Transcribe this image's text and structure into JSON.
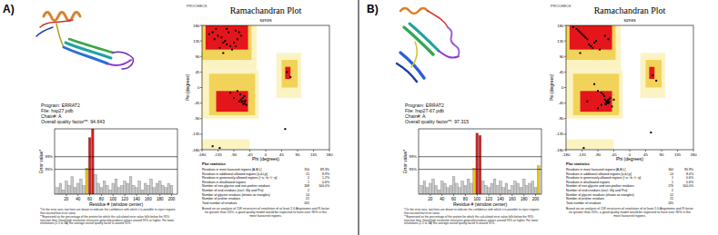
{
  "figure": {
    "panel_labels": [
      "A)",
      "B)"
    ]
  },
  "chart_data": [
    {
      "type": "bar",
      "annotations": {
        "program": "Program: ERRAT2",
        "file": "File: hsp27.pdb",
        "chain": "Chain#: A",
        "quality": "Overall quality factor**: 94.643",
        "footnotes": [
          "*On the error axis, two lines are drawn to indicate the confidence with which it is possible to reject regions that exceed that error value.",
          "**Expressed as the percentage of the protein for which the calculated error value falls below the 95% rejection limit. Good high resolution structures generally produce values around 95% or higher. For lower resolutions (2.5 to 3A) the average overall quality factor is around 91%."
        ]
      },
      "x_label": "Residue # (window center)",
      "y_label": "Error value*",
      "x": [
        5,
        10,
        15,
        20,
        25,
        30,
        35,
        40,
        45,
        50,
        55,
        60,
        65,
        70,
        75,
        80,
        85,
        90,
        95,
        100,
        105,
        110,
        115,
        120,
        125,
        130,
        135,
        140,
        145,
        150,
        155,
        160,
        165,
        170,
        175,
        180,
        185,
        190,
        195,
        200
      ],
      "values": [
        3,
        5,
        2,
        6,
        4,
        8,
        3,
        5,
        7,
        4,
        12,
        26,
        30,
        9,
        5,
        3,
        6,
        4,
        2,
        5,
        7,
        3,
        4,
        6,
        5,
        8,
        4,
        3,
        6,
        2,
        5,
        4,
        7,
        3,
        5,
        6,
        4,
        3,
        5,
        4
      ],
      "colors": [
        "#c8c8c8",
        "#c8c8c8",
        "#c8c8c8",
        "#c8c8c8",
        "#c8c8c8",
        "#c8c8c8",
        "#c8c8c8",
        "#c8c8c8",
        "#c8c8c8",
        "#c8c8c8",
        "#e6c619",
        "#cc1f1f",
        "#cc1f1f",
        "#c8c8c8",
        "#c8c8c8",
        "#c8c8c8",
        "#c8c8c8",
        "#c8c8c8",
        "#c8c8c8",
        "#c8c8c8",
        "#c8c8c8",
        "#c8c8c8",
        "#c8c8c8",
        "#c8c8c8",
        "#c8c8c8",
        "#c8c8c8",
        "#c8c8c8",
        "#c8c8c8",
        "#c8c8c8",
        "#c8c8c8",
        "#c8c8c8",
        "#c8c8c8",
        "#c8c8c8",
        "#c8c8c8",
        "#c8c8c8",
        "#c8c8c8",
        "#c8c8c8",
        "#c8c8c8",
        "#c8c8c8",
        "#c8c8c8"
      ],
      "xlim": [
        0,
        210
      ],
      "xticks": [
        20,
        40,
        60,
        80,
        100,
        120,
        140,
        160,
        180,
        200
      ],
      "ylim": [
        0,
        30
      ],
      "thresholds": [
        {
          "value": 11.4,
          "label": "95%"
        },
        {
          "value": 17.2,
          "label": "99%"
        }
      ],
      "tick_labels": "x",
      "grid": false
    },
    {
      "type": "scatter",
      "title": "Ramachandran Plot",
      "subtitle": "saves",
      "annotations": {
        "program": "PROCHECK",
        "stats_title": "Plot statistics",
        "rows": [
          [
            "Residues in most favoured regions [A,B,L]",
            "150",
            "89.3%"
          ],
          [
            "Residues in additional allowed regions [a,b,l,p]",
            "15",
            "8.9%"
          ],
          [
            "Residues in generously allowed regions [~a,~b,~l,~p]",
            "2",
            "1.2%"
          ],
          [
            "Residues in disallowed regions",
            "1",
            "0.6%"
          ],
          [
            "Number of non-glycine and non-proline residues",
            "168",
            "100.0%"
          ],
          [
            "Number of end-residues (excl. Gly and Pro)",
            "2"
          ],
          [
            "Number of glycine residues (shown as triangles)",
            "14"
          ],
          [
            "Number of proline residues",
            "21"
          ],
          [
            "Total number of residues",
            "205"
          ]
        ],
        "note": "Based on an analysis of 118 structures of resolution of at least 2.0 Angstroms and R-factor no greater than 20%, a good quality model would be expected to have over 90% in the most favoured regions."
      },
      "x_label": "Phi (degrees)",
      "y_label": "Psi (degrees)",
      "x": [
        -120,
        -135,
        -100,
        -150,
        -80,
        -110,
        -140,
        -95,
        -125,
        -160,
        -70,
        -115,
        -130,
        -90,
        -105,
        -145,
        -85,
        -120,
        -65,
        -60,
        -70,
        -55,
        -65,
        -75,
        -60,
        -68,
        -58,
        -63,
        -72,
        -80,
        -100,
        -90,
        -110,
        70,
        60,
        -75,
        -85,
        -150,
        -130,
        55
      ],
      "values": [
        130,
        150,
        120,
        160,
        140,
        125,
        170,
        110,
        145,
        155,
        150,
        135,
        115,
        130,
        160,
        140,
        120,
        100,
        -40,
        -45,
        -35,
        -50,
        -30,
        -40,
        -25,
        -42,
        -38,
        -48,
        -20,
        -10,
        -15,
        -30,
        170,
        30,
        45,
        160,
        165,
        -170,
        -175,
        -120
      ],
      "color": "#000000",
      "marker": "square",
      "xlim": [
        -180,
        180
      ],
      "xticks": [
        -180,
        -135,
        -90,
        -45,
        0,
        45,
        90,
        135,
        180
      ],
      "ylim": [
        -180,
        180
      ],
      "yticks": [
        -180,
        -135,
        -90,
        -45,
        0,
        45,
        90,
        135,
        180
      ],
      "grid": false
    },
    {
      "type": "bar",
      "annotations": {
        "program": "Program: ERRAT2",
        "file": "File: hsp27-67.pdb",
        "chain": "Chain#: A",
        "quality": "Overall quality factor**: 97.315",
        "footnotes": [
          "*On the error axis, two lines are drawn to indicate the confidence with which it is possible to reject regions that exceed that error value.",
          "**Expressed as the percentage of the protein for which the calculated error value falls below the 95% rejection limit. Good high resolution structures generally produce values around 95% or higher. For lower resolutions (2.5 to 3A) the average overall quality factor is around 91%."
        ]
      },
      "x_label": "Residue # (window center)",
      "y_label": "Error value*",
      "x": [
        5,
        10,
        15,
        20,
        25,
        30,
        35,
        40,
        45,
        50,
        55,
        60,
        65,
        70,
        75,
        80,
        85,
        90,
        95,
        100,
        105,
        110,
        115,
        120,
        125,
        130,
        135,
        140,
        145,
        150,
        155,
        160,
        165,
        170,
        175,
        180,
        185,
        190,
        195,
        200,
        205
      ],
      "values": [
        4,
        6,
        3,
        5,
        7,
        4,
        2,
        6,
        5,
        3,
        4,
        8,
        5,
        3,
        6,
        4,
        7,
        5,
        12,
        28,
        27,
        6,
        4,
        3,
        5,
        7,
        4,
        6,
        3,
        5,
        2,
        4,
        6,
        5,
        3,
        7,
        4,
        5,
        6,
        3,
        13
      ],
      "colors": [
        "#c8c8c8",
        "#c8c8c8",
        "#c8c8c8",
        "#c8c8c8",
        "#c8c8c8",
        "#c8c8c8",
        "#c8c8c8",
        "#c8c8c8",
        "#c8c8c8",
        "#c8c8c8",
        "#c8c8c8",
        "#c8c8c8",
        "#c8c8c8",
        "#c8c8c8",
        "#c8c8c8",
        "#c8c8c8",
        "#c8c8c8",
        "#c8c8c8",
        "#e6c619",
        "#cc1f1f",
        "#cc1f1f",
        "#c8c8c8",
        "#c8c8c8",
        "#c8c8c8",
        "#c8c8c8",
        "#c8c8c8",
        "#c8c8c8",
        "#c8c8c8",
        "#c8c8c8",
        "#c8c8c8",
        "#c8c8c8",
        "#c8c8c8",
        "#c8c8c8",
        "#c8c8c8",
        "#c8c8c8",
        "#c8c8c8",
        "#c8c8c8",
        "#c8c8c8",
        "#c8c8c8",
        "#c8c8c8",
        "#e6c619"
      ],
      "xlim": [
        0,
        210
      ],
      "xticks": [
        20,
        40,
        60,
        80,
        100,
        120,
        140,
        160,
        180,
        200
      ],
      "ylim": [
        0,
        30
      ],
      "thresholds": [
        {
          "value": 11.4,
          "label": "95%"
        },
        {
          "value": 17.2,
          "label": "99%"
        }
      ],
      "tick_labels": "x",
      "grid": false
    },
    {
      "type": "scatter",
      "title": "Ramachandran Plot",
      "subtitle": "saves",
      "annotations": {
        "program": "PROCHECK",
        "stats_title": "Plot statistics",
        "rows": [
          [
            "Residues in most favoured regions [A,B,L]",
            "160",
            "90.9%"
          ],
          [
            "Residues in additional allowed regions [a,b,l,p]",
            "14",
            "8.0%"
          ],
          [
            "Residues in generously allowed regions [~a,~b,~l,~p]",
            "1",
            "0.6%"
          ],
          [
            "Residues in disallowed regions",
            "1",
            "0.6%"
          ],
          [
            "Number of non-glycine and non-proline residues",
            "176",
            "100.0%"
          ],
          [
            "Number of end-residues (excl. Gly and Pro)",
            "2"
          ],
          [
            "Number of glycine residues (shown as triangles)",
            "12"
          ],
          [
            "Number of proline residues",
            "15"
          ],
          [
            "Total number of residues",
            "205"
          ]
        ],
        "note": "Based on an analysis of 118 structures of resolution of at least 2.0 Angstroms and R-factor no greater than 20%, a good quality model would be expected to have over 90% in the most favoured regions."
      },
      "x_label": "Phi (degrees)",
      "y_label": "Psi (degrees)",
      "x": [
        -65,
        -60,
        -70,
        -58,
        -62,
        -67,
        -55,
        -72,
        -63,
        -66,
        -61,
        -69,
        -57,
        -64,
        -75,
        -80,
        -90,
        -100,
        -120,
        -130,
        -140,
        -110,
        -150,
        -95,
        -125,
        -135,
        -85,
        -115,
        -145,
        -105,
        -160,
        -70,
        -60,
        65,
        75,
        -80,
        -90,
        -120,
        -140,
        -50,
        -45,
        -100,
        -130,
        60
      ],
      "values": [
        -40,
        -45,
        -35,
        -42,
        -38,
        -48,
        -30,
        -25,
        -44,
        -41,
        -36,
        -47,
        -33,
        -39,
        -20,
        -15,
        -10,
        130,
        140,
        150,
        160,
        120,
        170,
        135,
        145,
        155,
        110,
        125,
        165,
        115,
        175,
        150,
        140,
        35,
        20,
        -50,
        -60,
        -40,
        100,
        -55,
        -35,
        10,
        -175,
        -130
      ],
      "color": "#000000",
      "marker": "square",
      "xlim": [
        -180,
        180
      ],
      "xticks": [
        -180,
        -135,
        -90,
        -45,
        0,
        45,
        90,
        135,
        180
      ],
      "ylim": [
        -180,
        180
      ],
      "yticks": [
        -180,
        -135,
        -90,
        -45,
        0,
        45,
        90,
        135,
        180
      ],
      "grid": false
    }
  ]
}
